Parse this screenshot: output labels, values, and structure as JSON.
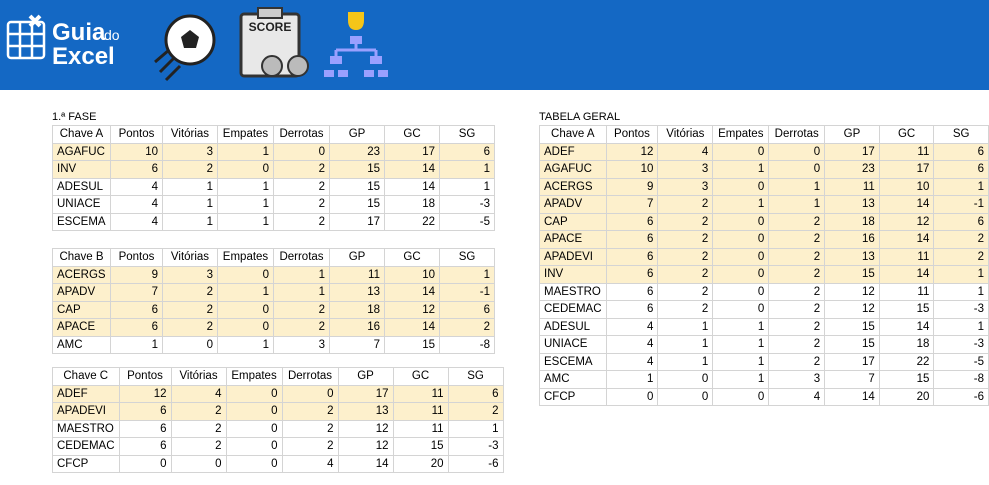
{
  "header": {
    "logo_main": "Guia",
    "logo_small": "do",
    "logo_second": "Excel",
    "score": "SCORE"
  },
  "phase": {
    "title": "1.ª FASE",
    "groups": [
      {
        "columns": [
          "Chave A",
          "Pontos",
          "Vitórias",
          "Empates",
          "Derrotas",
          "GP",
          "GC",
          "SG"
        ],
        "highlighted": 2,
        "rows": [
          [
            "AGAFUC",
            10,
            3,
            1,
            0,
            23,
            17,
            6
          ],
          [
            "INV",
            6,
            2,
            0,
            2,
            15,
            14,
            1
          ],
          [
            "ADESUL",
            4,
            1,
            1,
            2,
            15,
            14,
            1
          ],
          [
            "UNIACE",
            4,
            1,
            1,
            2,
            15,
            18,
            -3
          ],
          [
            "ESCEMA",
            4,
            1,
            1,
            2,
            17,
            22,
            -5
          ]
        ]
      },
      {
        "columns": [
          "Chave B",
          "Pontos",
          "Vitórias",
          "Empates",
          "Derrotas",
          "GP",
          "GC",
          "SG"
        ],
        "highlighted": 4,
        "rows": [
          [
            "ACERGS",
            9,
            3,
            0,
            1,
            11,
            10,
            1
          ],
          [
            "APADV",
            7,
            2,
            1,
            1,
            13,
            14,
            -1
          ],
          [
            "CAP",
            6,
            2,
            0,
            2,
            18,
            12,
            6
          ],
          [
            "APACE",
            6,
            2,
            0,
            2,
            16,
            14,
            2
          ],
          [
            "AMC",
            1,
            0,
            1,
            3,
            7,
            15,
            -8
          ]
        ]
      },
      {
        "columns": [
          "Chave C",
          "Pontos",
          "Vitórias",
          "Empates",
          "Derrotas",
          "GP",
          "GC",
          "SG"
        ],
        "highlighted": 2,
        "rows": [
          [
            "ADEF",
            12,
            4,
            0,
            0,
            17,
            11,
            6
          ],
          [
            "APADEVI",
            6,
            2,
            0,
            2,
            13,
            11,
            2
          ],
          [
            "MAESTRO",
            6,
            2,
            0,
            2,
            12,
            11,
            1
          ],
          [
            "CEDEMAC",
            6,
            2,
            0,
            2,
            12,
            15,
            -3
          ],
          [
            "CFCP",
            0,
            0,
            0,
            4,
            14,
            20,
            -6
          ]
        ]
      }
    ]
  },
  "general": {
    "title": "TABELA GERAL",
    "columns": [
      "Chave A",
      "Pontos",
      "Vitórias",
      "Empates",
      "Derrotas",
      "GP",
      "GC",
      "SG"
    ],
    "highlighted": 8,
    "rows": [
      [
        "ADEF",
        12,
        4,
        0,
        0,
        17,
        11,
        6
      ],
      [
        "AGAFUC",
        10,
        3,
        1,
        0,
        23,
        17,
        6
      ],
      [
        "ACERGS",
        9,
        3,
        0,
        1,
        11,
        10,
        1
      ],
      [
        "APADV",
        7,
        2,
        1,
        1,
        13,
        14,
        -1
      ],
      [
        "CAP",
        6,
        2,
        0,
        2,
        18,
        12,
        6
      ],
      [
        "APACE",
        6,
        2,
        0,
        2,
        16,
        14,
        2
      ],
      [
        "APADEVI",
        6,
        2,
        0,
        2,
        13,
        11,
        2
      ],
      [
        "INV",
        6,
        2,
        0,
        2,
        15,
        14,
        1
      ],
      [
        "MAESTRO",
        6,
        2,
        0,
        2,
        12,
        11,
        1
      ],
      [
        "CEDEMAC",
        6,
        2,
        0,
        2,
        12,
        15,
        -3
      ],
      [
        "ADESUL",
        4,
        1,
        1,
        2,
        15,
        14,
        1
      ],
      [
        "UNIACE",
        4,
        1,
        1,
        2,
        15,
        18,
        -3
      ],
      [
        "ESCEMA",
        4,
        1,
        1,
        2,
        17,
        22,
        -5
      ],
      [
        "AMC",
        1,
        0,
        1,
        3,
        7,
        15,
        -8
      ],
      [
        "CFCP",
        0,
        0,
        0,
        4,
        14,
        20,
        -6
      ]
    ]
  }
}
